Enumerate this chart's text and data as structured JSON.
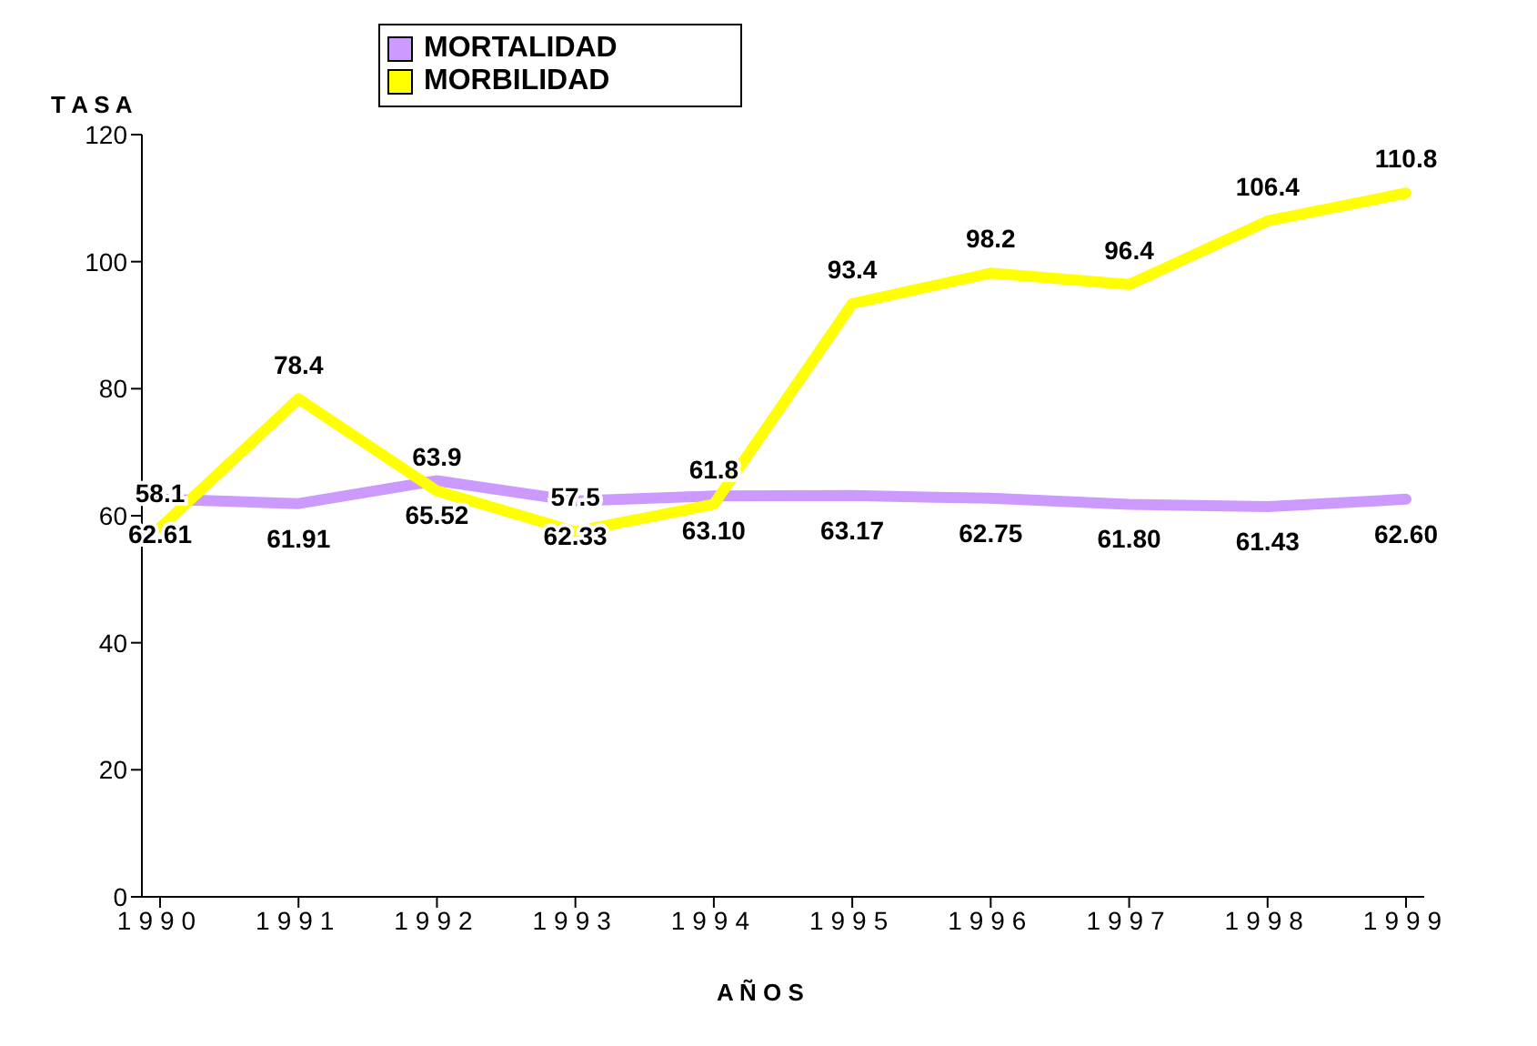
{
  "chart_data": {
    "type": "line",
    "ylabel": "T A S A",
    "xlabel": "A Ñ O S",
    "categories": [
      "1990",
      "1991",
      "1992",
      "1993",
      "1994",
      "1995",
      "1996",
      "1997",
      "1998",
      "1999"
    ],
    "series": [
      {
        "name": "MORTALIDAD",
        "color": "#cc99ff",
        "values": [
          62.61,
          61.91,
          65.52,
          62.33,
          63.1,
          63.17,
          62.75,
          61.8,
          61.43,
          62.6
        ],
        "value_labels": [
          "62.61",
          "61.91",
          "65.52",
          "62.33",
          "63.10",
          "63.17",
          "62.75",
          "61.80",
          "61.43",
          "62.60"
        ]
      },
      {
        "name": "MORBILIDAD",
        "color": "#ffff00",
        "values": [
          58.1,
          78.4,
          63.9,
          57.5,
          61.8,
          93.4,
          98.2,
          96.4,
          106.4,
          110.8
        ],
        "value_labels": [
          "58.1",
          "78.4",
          "63.9",
          "57.5",
          "61.8",
          "93.4",
          "98.2",
          "96.4",
          "106.4",
          "110.8"
        ]
      }
    ],
    "ylim": [
      0,
      120
    ],
    "yticks": [
      0,
      20,
      40,
      60,
      80,
      100,
      120
    ],
    "grid": false,
    "legend": "top",
    "marker": "none",
    "line_style": "solid"
  }
}
